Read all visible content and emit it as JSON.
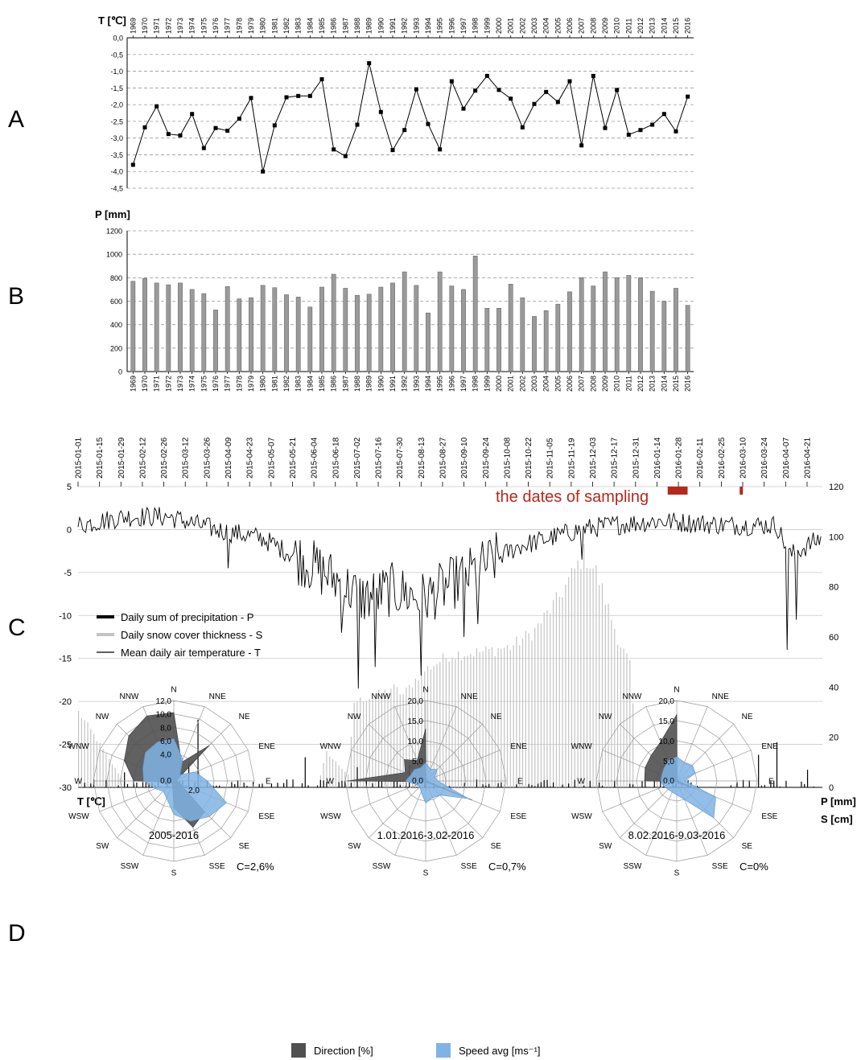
{
  "panels": {
    "a": "A",
    "b": "B",
    "c": "C",
    "d": "D"
  },
  "colors": {
    "line": "#000000",
    "bar_b": "#9a9a9a",
    "snow": "#c4c4c4",
    "precip": "#000000",
    "sampling": "#b5281b",
    "direction": "#505050",
    "speed": "#7fb3e4",
    "grid": "#9a9a9a"
  },
  "chart_data": [
    {
      "id": "A",
      "type": "line",
      "ylabel": "T [℃]",
      "ylim": [
        -4.5,
        0.0
      ],
      "yticks": [
        "0,0",
        "-0,5",
        "-1,0",
        "-1,5",
        "-2,0",
        "-2,5",
        "-3,0",
        "-3,5",
        "-4,0",
        "-4,5"
      ],
      "grid": "dashed horizontal",
      "x": [
        "1969",
        "1970",
        "1971",
        "1972",
        "1973",
        "1974",
        "1975",
        "1976",
        "1977",
        "1978",
        "1979",
        "1980",
        "1981",
        "1982",
        "1983",
        "1984",
        "1985",
        "1986",
        "1987",
        "1988",
        "1989",
        "1990",
        "1991",
        "1992",
        "1993",
        "1994",
        "1995",
        "1996",
        "1997",
        "1998",
        "1999",
        "2000",
        "2001",
        "2002",
        "2003",
        "2004",
        "2005",
        "2006",
        "2007",
        "2008",
        "2009",
        "2010",
        "2011",
        "2012",
        "2013",
        "2014",
        "2015",
        "2016"
      ],
      "values": [
        -3.8,
        -2.68,
        -2.05,
        -2.88,
        -2.92,
        -2.28,
        -3.3,
        -2.7,
        -2.78,
        -2.42,
        -1.8,
        -4.0,
        -2.62,
        -1.78,
        -1.74,
        -1.74,
        -1.24,
        -3.34,
        -3.54,
        -2.6,
        -0.76,
        -2.22,
        -3.36,
        -2.76,
        -1.54,
        -2.58,
        -3.34,
        -1.3,
        -2.12,
        -1.58,
        -1.14,
        -1.56,
        -1.82,
        -2.68,
        -1.98,
        -1.62,
        -1.92,
        -1.3,
        -3.22,
        -1.14,
        -2.7,
        -1.56,
        -2.9,
        -2.76,
        -2.6,
        -2.28,
        -2.8,
        -1.76
      ]
    },
    {
      "id": "B",
      "type": "bar",
      "ylabel": "P [mm]",
      "ylim": [
        0,
        1200
      ],
      "yticks": [
        "0",
        "200",
        "400",
        "600",
        "800",
        "1000",
        "1200"
      ],
      "grid": "dashed horizontal",
      "categories": [
        "1969",
        "1970",
        "1971",
        "1972",
        "1973",
        "1974",
        "1975",
        "1976",
        "1977",
        "1978",
        "1979",
        "1980",
        "1981",
        "1982",
        "1983",
        "1984",
        "1985",
        "1986",
        "1987",
        "1988",
        "1989",
        "1990",
        "1991",
        "1992",
        "1993",
        "1994",
        "1995",
        "1996",
        "1997",
        "1998",
        "1999",
        "2000",
        "2001",
        "2002",
        "2003",
        "2004",
        "2005",
        "2006",
        "2007",
        "2008",
        "2009",
        "2010",
        "2011",
        "2012",
        "2013",
        "2014",
        "2015",
        "2016"
      ],
      "values": [
        770,
        795,
        755,
        740,
        755,
        700,
        665,
        525,
        725,
        620,
        630,
        735,
        715,
        655,
        635,
        550,
        720,
        830,
        710,
        650,
        660,
        720,
        755,
        850,
        735,
        500,
        850,
        730,
        700,
        985,
        540,
        540,
        745,
        630,
        470,
        520,
        575,
        680,
        800,
        730,
        850,
        800,
        820,
        800,
        685,
        600,
        710,
        565
      ]
    },
    {
      "id": "C",
      "type": "line",
      "left_axis_label": "T [℃]",
      "right_axis_labels": [
        "P [mm]",
        "S [cm]"
      ],
      "ylim_left": [
        -30,
        5
      ],
      "ylim_right": [
        0,
        120
      ],
      "yticks_left": [
        "5",
        "0",
        "-5",
        "-10",
        "-15",
        "-20",
        "-25",
        "-30"
      ],
      "yticks_right": [
        "120",
        "100",
        "80",
        "60",
        "40",
        "20",
        "0"
      ],
      "grid": "horizontal",
      "x_dates": [
        "2015-01-01",
        "2015-01-15",
        "2015-01-29",
        "2015-02-12",
        "2015-02-26",
        "2015-03-12",
        "2015-03-26",
        "2015-04-09",
        "2015-04-23",
        "2015-05-07",
        "2015-05-21",
        "2015-06-04",
        "2015-06-18",
        "2015-07-02",
        "2015-07-16",
        "2015-07-30",
        "2015-08-13",
        "2015-08-27",
        "2015-09-10",
        "2015-09-24",
        "2015-10-08",
        "2015-10-22",
        "2015-11-05",
        "2015-11-19",
        "2015-12-03",
        "2015-12-17",
        "2015-12-31",
        "2016-01-14",
        "2016-01-28",
        "2016-02-11",
        "2016-02-25",
        "2016-03-10",
        "2016-03-24",
        "2016-04-07",
        "2016-04-21"
      ],
      "annotation": "the dates of sampling",
      "sampling_periods": [
        [
          "2016-01-21",
          "2016-02-03"
        ],
        [
          "2016-03-08",
          "2016-03-10"
        ]
      ],
      "legend": [
        "Daily sum of precipitation - P",
        "Daily snow cover thickness - S",
        "Mean daily air temperature - T"
      ],
      "temperature_profile": [
        [
          "2015-01-01",
          0.5
        ],
        [
          "2015-02-01",
          1.5
        ],
        [
          "2015-03-01",
          1.5
        ],
        [
          "2015-04-01",
          0
        ],
        [
          "2015-05-01",
          -1
        ],
        [
          "2015-06-01",
          -4
        ],
        [
          "2015-06-20",
          -6
        ],
        [
          "2015-07-05",
          -8
        ],
        [
          "2015-07-25",
          -7
        ],
        [
          "2015-08-15",
          -8
        ],
        [
          "2015-09-05",
          -6
        ],
        [
          "2015-09-25",
          -4
        ],
        [
          "2015-10-15",
          -2
        ],
        [
          "2015-11-05",
          -1
        ],
        [
          "2015-11-25",
          0
        ],
        [
          "2015-12-15",
          0.5
        ],
        [
          "2016-01-15",
          1
        ],
        [
          "2016-03-01",
          0.5
        ],
        [
          "2016-04-01",
          0.5
        ],
        [
          "2016-04-10",
          -3
        ],
        [
          "2016-04-30",
          -1
        ]
      ],
      "temperature_extremes": [
        [
          "2015-04-09",
          -4.5
        ],
        [
          "2015-06-22",
          -12
        ],
        [
          "2015-07-03",
          -18.5
        ],
        [
          "2015-07-14",
          -16
        ],
        [
          "2015-08-13",
          -17
        ],
        [
          "2015-09-10",
          -12.5
        ],
        [
          "2015-09-19",
          -11
        ],
        [
          "2015-11-26",
          -3.5
        ],
        [
          "2016-04-08",
          -14
        ],
        [
          "2016-04-14",
          -10.5
        ]
      ],
      "snow_profile": [
        [
          "2015-01-01",
          30
        ],
        [
          "2015-01-10",
          22
        ],
        [
          "2015-01-20",
          12
        ],
        [
          "2015-01-30",
          3
        ],
        [
          "2015-02-05",
          0
        ],
        [
          "2015-06-06",
          0
        ],
        [
          "2015-06-12",
          14
        ],
        [
          "2015-06-26",
          5
        ],
        [
          "2015-06-30",
          34
        ],
        [
          "2015-07-20",
          38
        ],
        [
          "2015-07-25",
          40
        ],
        [
          "2015-08-01",
          37
        ],
        [
          "2015-08-13",
          46
        ],
        [
          "2015-09-01",
          53
        ],
        [
          "2015-09-20",
          54
        ],
        [
          "2015-10-10",
          56
        ],
        [
          "2015-10-25",
          62
        ],
        [
          "2015-11-10",
          75
        ],
        [
          "2015-11-27",
          93
        ],
        [
          "2015-12-05",
          86
        ],
        [
          "2015-12-20",
          58
        ],
        [
          "2015-12-28",
          48
        ],
        [
          "2015-12-31",
          0
        ]
      ],
      "precip_peaks": [
        [
          "2015-01-30",
          6
        ],
        [
          "2015-03-14",
          10
        ],
        [
          "2015-03-20",
          27
        ],
        [
          "2015-05-29",
          12
        ],
        [
          "2015-07-01",
          8
        ],
        [
          "2015-08-05",
          9
        ],
        [
          "2016-03-20",
          13
        ],
        [
          "2016-04-01",
          18
        ],
        [
          "2016-04-20",
          7
        ]
      ]
    },
    {
      "id": "D1",
      "type": "radar",
      "title": "2005-2016",
      "calm": "C=2,6%",
      "rmax": 12,
      "radial_labels": [
        "12,0",
        "10,0",
        "8,0",
        "6,0",
        "4,0"
      ],
      "zero_label": "0,0",
      "speed_tick_label": "2,0",
      "directions": [
        "N",
        "NNE",
        "NE",
        "ENE",
        "E",
        "ESE",
        "SE",
        "SSE",
        "S",
        "SSW",
        "SW",
        "WSW",
        "W",
        "WNW",
        "NW",
        "NNW"
      ],
      "series": [
        {
          "name": "Direction [%]",
          "values": [
            10.2,
            3.0,
            7.5,
            0.6,
            0.4,
            1.0,
            6.5,
            7.5,
            4.0,
            0.5,
            0.5,
            0.5,
            6.0,
            8.0,
            9.5,
            10.5
          ]
        },
        {
          "name": "Speed avg [ms⁻¹]",
          "values": [
            6.3,
            3.5,
            1.3,
            3.5,
            5.0,
            8.5,
            7.5,
            6.5,
            5.0,
            2.8,
            2.2,
            3.0,
            4.5,
            5.0,
            6.0,
            6.3
          ]
        }
      ]
    },
    {
      "id": "D2",
      "type": "radar",
      "title": "1.01.2016-3.02-2016",
      "calm": "C=0,7%",
      "rmax": 20,
      "radial_labels": [
        "20,0",
        "15,0",
        "10,0",
        "5,0"
      ],
      "zero_label": "0,0",
      "directions": [
        "N",
        "NNE",
        "NE",
        "ENE",
        "E",
        "ESE",
        "SE",
        "SSE",
        "S",
        "SSW",
        "SW",
        "WSW",
        "W",
        "WNW",
        "NW",
        "NNW"
      ],
      "series": [
        {
          "name": "Direction [%]",
          "values": [
            13.0,
            0.3,
            0.3,
            0.3,
            0.3,
            12.5,
            0.5,
            0.3,
            2.5,
            0.3,
            0.3,
            0.5,
            19.5,
            5.5,
            7.5,
            5.5
          ]
        },
        {
          "name": "Speed avg [ms⁻¹]",
          "values": [
            4.5,
            3.2,
            4.0,
            2.5,
            3.0,
            11.5,
            5.0,
            4.5,
            5.5,
            3.0,
            2.0,
            2.5,
            5.0,
            4.0,
            4.0,
            3.5
          ]
        }
      ]
    },
    {
      "id": "D3",
      "type": "radar",
      "title": "8.02.2016-9.03-2016",
      "calm": "C=0%",
      "rmax": 20,
      "radial_labels": [
        "20,0",
        "15,0",
        "10,0",
        "5,0"
      ],
      "zero_label": "0,0",
      "directions": [
        "N",
        "NNE",
        "NE",
        "ENE",
        "E",
        "ESE",
        "SE",
        "SSE",
        "S",
        "SSW",
        "SW",
        "WSW",
        "W",
        "WNW",
        "NW",
        "NNW"
      ],
      "series": [
        {
          "name": "Direction [%]",
          "values": [
            16.5,
            0.3,
            0.3,
            0.3,
            0.3,
            4.5,
            1.0,
            0.5,
            0.3,
            0.3,
            0.3,
            0.5,
            8.0,
            8.5,
            9.0,
            10.5
          ]
        },
        {
          "name": "Speed avg [ms⁻¹]",
          "values": [
            6.0,
            5.0,
            5.5,
            5.0,
            2.0,
            10.5,
            13.0,
            5.0,
            3.5,
            3.0,
            3.0,
            3.5,
            4.0,
            4.0,
            4.5,
            5.5
          ]
        }
      ]
    }
  ],
  "legend_d": {
    "direction": "Direction [%]",
    "speed": "Speed avg [ms⁻¹]"
  }
}
